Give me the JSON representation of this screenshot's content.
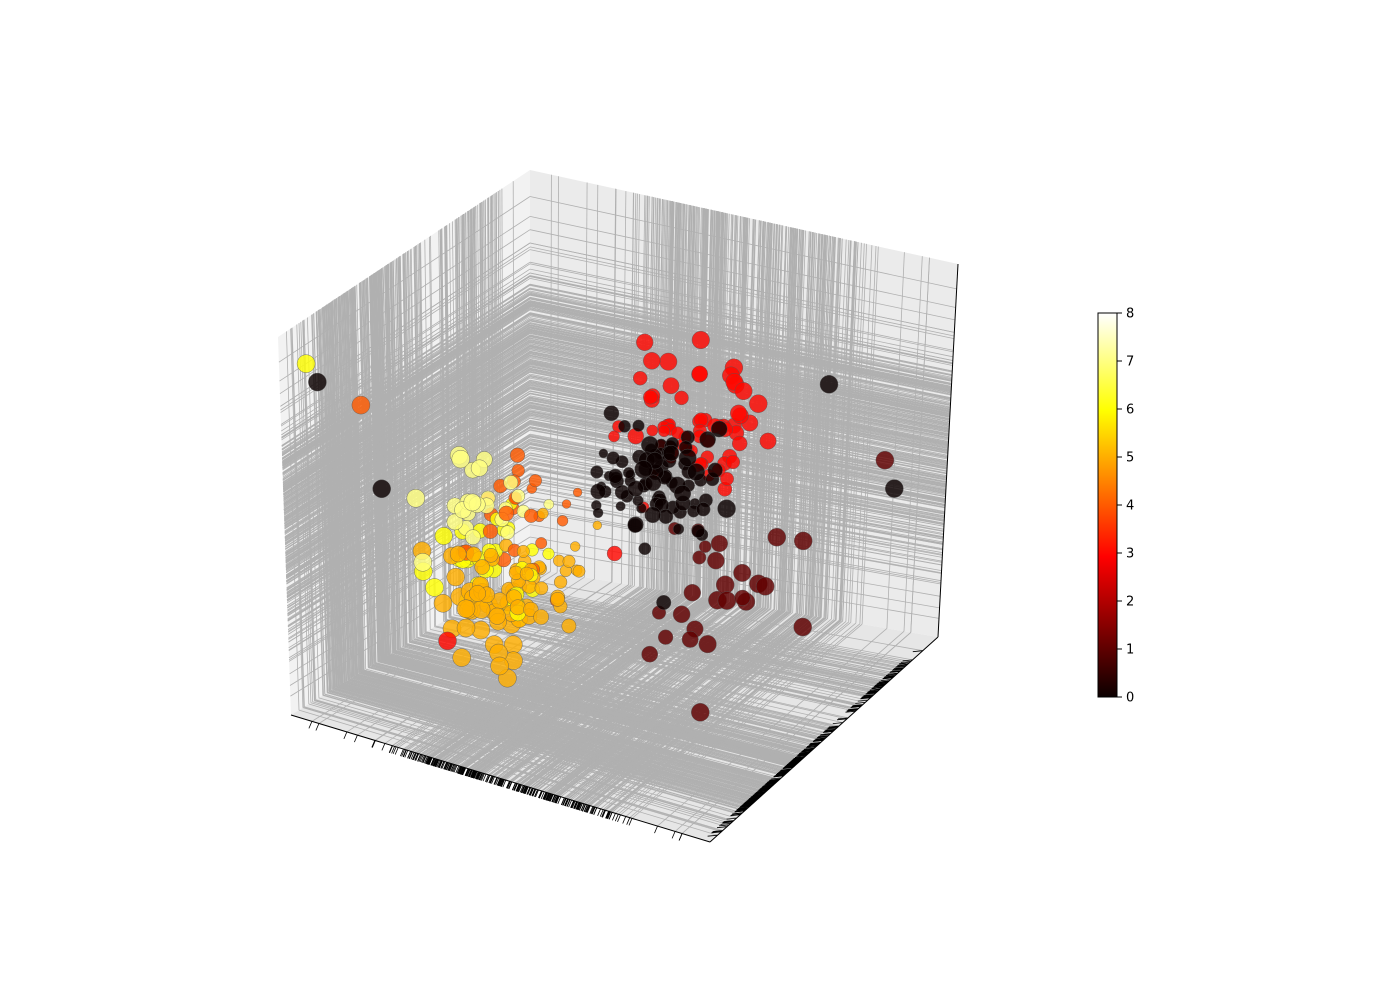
{
  "chart_data": {
    "type": "scatter",
    "projection": "3d",
    "title": "",
    "xlabel": "",
    "ylabel": "",
    "zlabel": "",
    "grid": true,
    "colormap": "hot",
    "xlim": [
      -3,
      3
    ],
    "ylim": [
      -3,
      3
    ],
    "zlim": [
      -3,
      3
    ],
    "clusters": [
      {
        "class": 0,
        "center": [
          1.0,
          -0.4,
          0.8
        ],
        "spread": 0.45,
        "count": 85
      },
      {
        "class": 3,
        "center": [
          0.2,
          1.6,
          0.5
        ],
        "spread": 0.45,
        "count": 65
      },
      {
        "class": 5,
        "center": [
          -0.4,
          -1.7,
          -0.8
        ],
        "spread": 0.45,
        "count": 75
      },
      {
        "class": 6,
        "center": [
          -0.9,
          -1.3,
          -0.9
        ],
        "spread": 0.4,
        "count": 35
      },
      {
        "class": 7,
        "center": [
          -1.0,
          -1.6,
          0.5
        ],
        "spread": 0.35,
        "count": 25
      },
      {
        "class": 1,
        "center": [
          0.9,
          0.8,
          -1.4
        ],
        "spread": 0.45,
        "count": 25
      },
      {
        "class": 4,
        "center": [
          -0.6,
          -1.2,
          0.1
        ],
        "spread": 0.6,
        "count": 25
      }
    ],
    "outliers": [
      {
        "x": -2.7,
        "y": -2.8,
        "z": 2.6,
        "class": 6
      },
      {
        "x": -2.6,
        "y": -2.7,
        "z": 2.3,
        "class": 0
      },
      {
        "x": -2.2,
        "y": -2.3,
        "z": 1.9,
        "class": 4
      },
      {
        "x": 2.6,
        "y": 1.0,
        "z": 2.1,
        "class": 0
      },
      {
        "x": 2.6,
        "y": 2.2,
        "z": 0.2,
        "class": 1
      },
      {
        "x": 2.5,
        "y": 2.6,
        "z": -0.5,
        "class": 0
      },
      {
        "x": -1.8,
        "y": -2.5,
        "z": 0.8,
        "class": 0
      },
      {
        "x": 1.5,
        "y": -0.5,
        "z": -2.7,
        "class": 1
      },
      {
        "x": -1.0,
        "y": -2.4,
        "z": -1.4,
        "class": 3
      },
      {
        "x": 0.3,
        "y": 0.3,
        "z": 1.9,
        "class": 3
      },
      {
        "x": -0.3,
        "y": 1.3,
        "z": 1.8,
        "class": 3
      }
    ],
    "colorbar": {
      "min": 0,
      "max": 8,
      "ticks": [
        "0",
        "1",
        "2",
        "3",
        "4",
        "5",
        "6",
        "7",
        "8"
      ]
    }
  }
}
